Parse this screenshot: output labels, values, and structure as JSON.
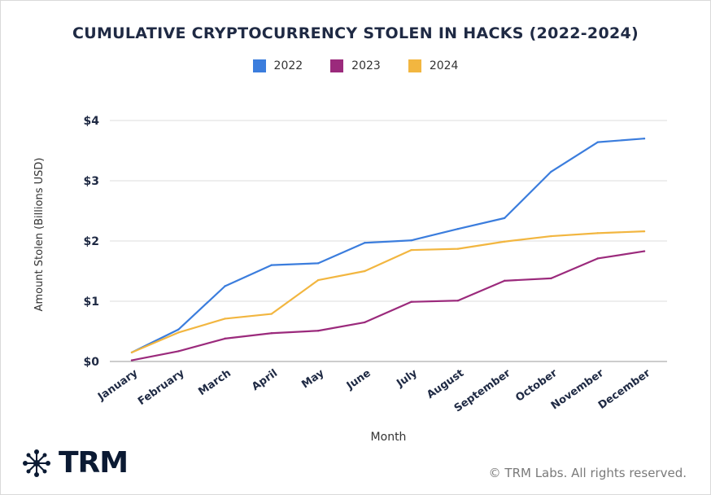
{
  "title": "CUMULATIVE CRYPTOCURRENCY STOLEN IN HACKS (2022-2024)",
  "legend": [
    {
      "label": "2022",
      "color": "#3b7ddd"
    },
    {
      "label": "2023",
      "color": "#9b2a7c"
    },
    {
      "label": "2024",
      "color": "#f2b640"
    }
  ],
  "footer": {
    "logo_text": "TRM",
    "copyright": "© TRM Labs. All rights reserved."
  },
  "chart_data": {
    "type": "line",
    "xlabel": "Month",
    "ylabel": "Amount Stolen (Billions USD)",
    "ylim": [
      0,
      4
    ],
    "yticks": [
      0,
      1,
      2,
      3,
      4
    ],
    "ytick_labels": [
      "$0",
      "$1",
      "$2",
      "$3",
      "$4"
    ],
    "grid": "horizontal",
    "legend_position": "top-center",
    "categories": [
      "January",
      "February",
      "March",
      "April",
      "May",
      "June",
      "July",
      "August",
      "September",
      "October",
      "November",
      "December"
    ],
    "series": [
      {
        "name": "2022",
        "color": "#3b7ddd",
        "values": [
          0.15,
          0.53,
          1.25,
          1.6,
          1.63,
          1.97,
          2.01,
          2.2,
          2.38,
          3.15,
          3.64,
          3.7
        ]
      },
      {
        "name": "2023",
        "color": "#9b2a7c",
        "values": [
          0.02,
          0.17,
          0.38,
          0.47,
          0.51,
          0.65,
          0.99,
          1.01,
          1.34,
          1.38,
          1.71,
          1.83
        ]
      },
      {
        "name": "2024",
        "color": "#f2b640",
        "values": [
          0.15,
          0.48,
          0.71,
          0.79,
          1.35,
          1.5,
          1.85,
          1.87,
          1.99,
          2.08,
          2.13,
          2.16
        ]
      }
    ]
  }
}
